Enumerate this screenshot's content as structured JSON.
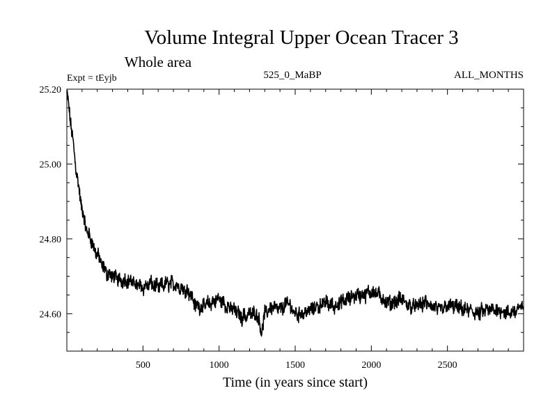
{
  "header": {
    "title": "Volume Integral Upper Ocean Tracer 3",
    "subtitle": "Whole area",
    "expt": "Expt = tEyjb",
    "period": "525_0_MaBP",
    "months": "ALL_MONTHS"
  },
  "chart_data": {
    "type": "line",
    "title": "Volume Integral Upper Ocean Tracer 3",
    "subtitle": "Whole area",
    "xlabel": "Time (in years since start)",
    "ylabel": "",
    "xlim": [
      0,
      3000
    ],
    "ylim": [
      24.5,
      25.2
    ],
    "x_ticks": [
      500,
      1000,
      1500,
      2000,
      2500
    ],
    "x_tick_labels": [
      "500",
      "1000",
      "1500",
      "2000",
      "2500"
    ],
    "y_ticks": [
      24.6,
      24.8,
      25.0,
      25.2
    ],
    "y_tick_labels": [
      "24.60",
      "24.80",
      "25.00",
      "25.20"
    ],
    "grid": false,
    "series": [
      {
        "name": "Tracer 3",
        "color": "#000000",
        "x": [
          0,
          20,
          40,
          60,
          80,
          100,
          120,
          140,
          160,
          180,
          200,
          230,
          260,
          300,
          350,
          400,
          450,
          500,
          550,
          600,
          650,
          700,
          750,
          800,
          850,
          900,
          950,
          1000,
          1050,
          1100,
          1150,
          1200,
          1250,
          1280,
          1300,
          1350,
          1400,
          1450,
          1500,
          1550,
          1600,
          1650,
          1700,
          1750,
          1800,
          1850,
          1900,
          1950,
          2000,
          2050,
          2100,
          2150,
          2200,
          2250,
          2300,
          2350,
          2400,
          2450,
          2500,
          2550,
          2600,
          2650,
          2700,
          2750,
          2800,
          2850,
          2900,
          2950,
          3000
        ],
        "values": [
          25.19,
          25.13,
          25.06,
          24.99,
          24.93,
          24.88,
          24.84,
          24.81,
          24.8,
          24.77,
          24.76,
          24.73,
          24.71,
          24.7,
          24.69,
          24.69,
          24.68,
          24.67,
          24.68,
          24.67,
          24.68,
          24.68,
          24.67,
          24.66,
          24.62,
          24.62,
          24.63,
          24.64,
          24.62,
          24.61,
          24.59,
          24.6,
          24.6,
          24.55,
          24.6,
          24.62,
          24.61,
          24.63,
          24.6,
          24.6,
          24.61,
          24.62,
          24.63,
          24.62,
          24.63,
          24.64,
          24.65,
          24.65,
          24.66,
          24.65,
          24.63,
          24.63,
          24.64,
          24.62,
          24.62,
          24.63,
          24.62,
          24.61,
          24.62,
          24.62,
          24.61,
          24.61,
          24.6,
          24.61,
          24.61,
          24.61,
          24.6,
          24.61,
          24.62
        ]
      }
    ]
  }
}
